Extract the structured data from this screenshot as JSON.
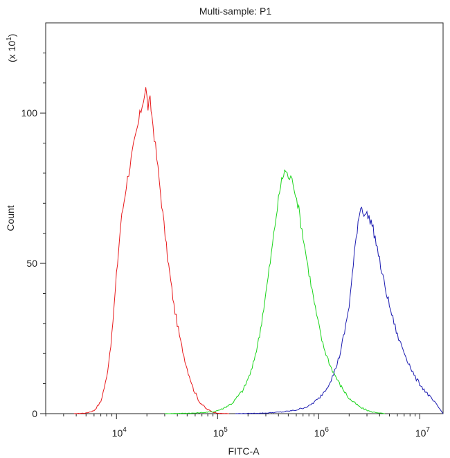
{
  "chart_data": {
    "type": "line",
    "title": "Multi-sample: P1",
    "xlabel": "FITC-A",
    "ylabel": "Count",
    "y_multiplier_label": "(x 10",
    "y_multiplier_exp": "1",
    "x_scale": "log",
    "xlim_log10": [
      3.3,
      7.23
    ],
    "ylim": [
      0,
      1300
    ],
    "x_ticks": [
      {
        "base": "10",
        "exp": "4",
        "value": 10000
      },
      {
        "base": "10",
        "exp": "5",
        "value": 100000
      },
      {
        "base": "10",
        "exp": "6",
        "value": 1000000
      },
      {
        "base": "10",
        "exp": "7",
        "value": 10000000
      }
    ],
    "y_ticks": [
      {
        "label": "0",
        "value": 0
      },
      {
        "label": "50",
        "value": 500
      },
      {
        "label": "100",
        "value": 1000
      }
    ],
    "grid": false,
    "legend": "none",
    "series": [
      {
        "color": "#e8191b",
        "points": [
          [
            3800,
            0
          ],
          [
            5000,
            2
          ],
          [
            6000,
            10
          ],
          [
            7000,
            40
          ],
          [
            8000,
            120
          ],
          [
            9000,
            260
          ],
          [
            10000,
            460
          ],
          [
            11000,
            630
          ],
          [
            12500,
            760
          ],
          [
            14000,
            850
          ],
          [
            15500,
            920
          ],
          [
            17000,
            990
          ],
          [
            18500,
            1050
          ],
          [
            19500,
            1080
          ],
          [
            20500,
            1020
          ],
          [
            21500,
            1040
          ],
          [
            23000,
            960
          ],
          [
            25000,
            850
          ],
          [
            28000,
            700
          ],
          [
            32000,
            520
          ],
          [
            37000,
            360
          ],
          [
            43000,
            240
          ],
          [
            50000,
            150
          ],
          [
            58000,
            80
          ],
          [
            66000,
            40
          ],
          [
            78000,
            15
          ],
          [
            90000,
            5
          ],
          [
            105000,
            1
          ],
          [
            130000,
            0
          ]
        ]
      },
      {
        "color": "#19d419",
        "points": [
          [
            30000,
            0
          ],
          [
            60000,
            2
          ],
          [
            90000,
            6
          ],
          [
            110000,
            15
          ],
          [
            140000,
            35
          ],
          [
            180000,
            80
          ],
          [
            220000,
            150
          ],
          [
            260000,
            260
          ],
          [
            300000,
            400
          ],
          [
            340000,
            530
          ],
          [
            380000,
            660
          ],
          [
            420000,
            760
          ],
          [
            460000,
            810
          ],
          [
            500000,
            790
          ],
          [
            560000,
            770
          ],
          [
            620000,
            700
          ],
          [
            700000,
            590
          ],
          [
            800000,
            470
          ],
          [
            950000,
            330
          ],
          [
            1100000,
            230
          ],
          [
            1300000,
            160
          ],
          [
            1600000,
            100
          ],
          [
            2000000,
            50
          ],
          [
            2600000,
            20
          ],
          [
            3300000,
            6
          ],
          [
            4500000,
            0
          ]
        ]
      },
      {
        "color": "#1a1ab0",
        "points": [
          [
            150000,
            0
          ],
          [
            300000,
            2
          ],
          [
            450000,
            6
          ],
          [
            600000,
            12
          ],
          [
            800000,
            25
          ],
          [
            1000000,
            50
          ],
          [
            1200000,
            85
          ],
          [
            1400000,
            130
          ],
          [
            1600000,
            190
          ],
          [
            1800000,
            270
          ],
          [
            2000000,
            360
          ],
          [
            2150000,
            460
          ],
          [
            2300000,
            560
          ],
          [
            2450000,
            640
          ],
          [
            2600000,
            690
          ],
          [
            2800000,
            670
          ],
          [
            3000000,
            660
          ],
          [
            3300000,
            640
          ],
          [
            3700000,
            570
          ],
          [
            4200000,
            470
          ],
          [
            5000000,
            360
          ],
          [
            6000000,
            260
          ],
          [
            7500000,
            180
          ],
          [
            9000000,
            120
          ],
          [
            11000000,
            80
          ],
          [
            13000000,
            50
          ],
          [
            15000000,
            25
          ],
          [
            17000000,
            0
          ]
        ]
      }
    ]
  }
}
